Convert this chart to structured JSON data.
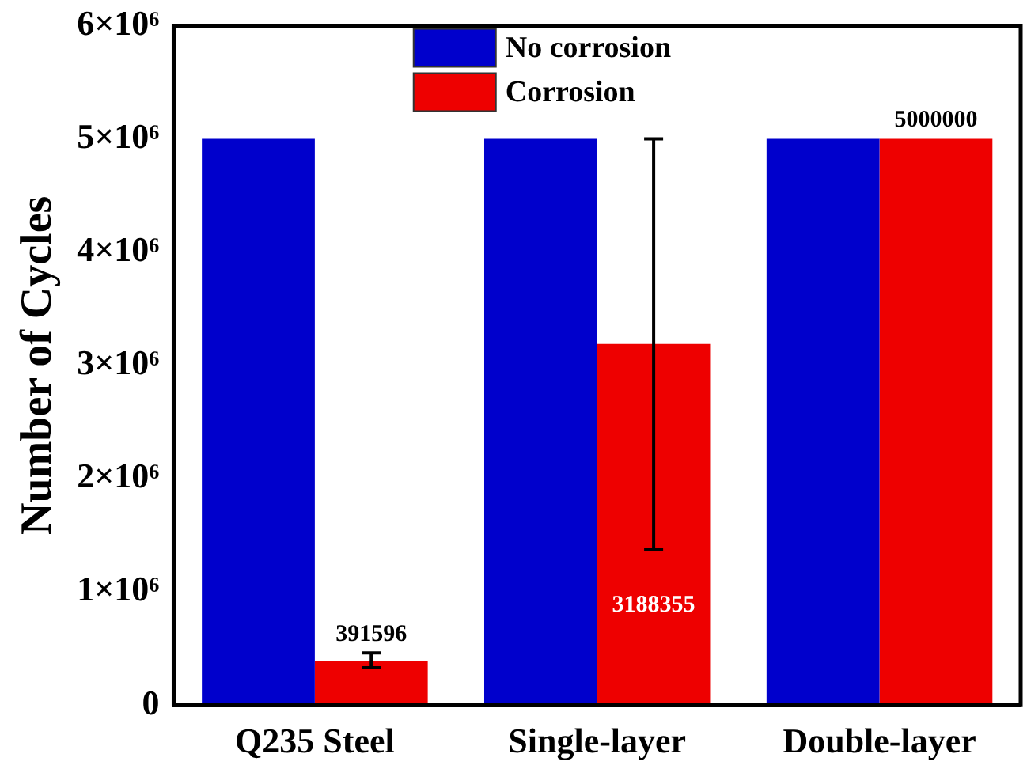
{
  "chart_data": {
    "type": "bar",
    "ylabel": "Number of Cycles",
    "categories": [
      "Q235 Steel",
      "Single-layer",
      "Double-layer"
    ],
    "series": [
      {
        "name": "No corrosion",
        "color": "#0000cc",
        "values": [
          5000000,
          5000000,
          5000000
        ]
      },
      {
        "name": "Corrosion",
        "color": "#ee0000",
        "values": [
          391596,
          3188355,
          5000000
        ],
        "errors": [
          [
            330000,
            460000
          ],
          [
            1370000,
            5000000
          ],
          null
        ],
        "value_labels": [
          "391596",
          "3188355",
          "5000000"
        ]
      }
    ],
    "ylim": [
      0,
      6000000
    ],
    "yticks": [
      0,
      {
        "value": 1000000,
        "label": "1×10⁶"
      },
      {
        "value": 2000000,
        "label": "2×10⁶"
      },
      {
        "value": 3000000,
        "label": "3×10⁶"
      },
      {
        "value": 4000000,
        "label": "4×10⁶"
      },
      {
        "value": 5000000,
        "label": "5×10⁶"
      },
      {
        "value": 6000000,
        "label": "6×10⁶"
      }
    ],
    "grid": false,
    "legend": "top"
  }
}
